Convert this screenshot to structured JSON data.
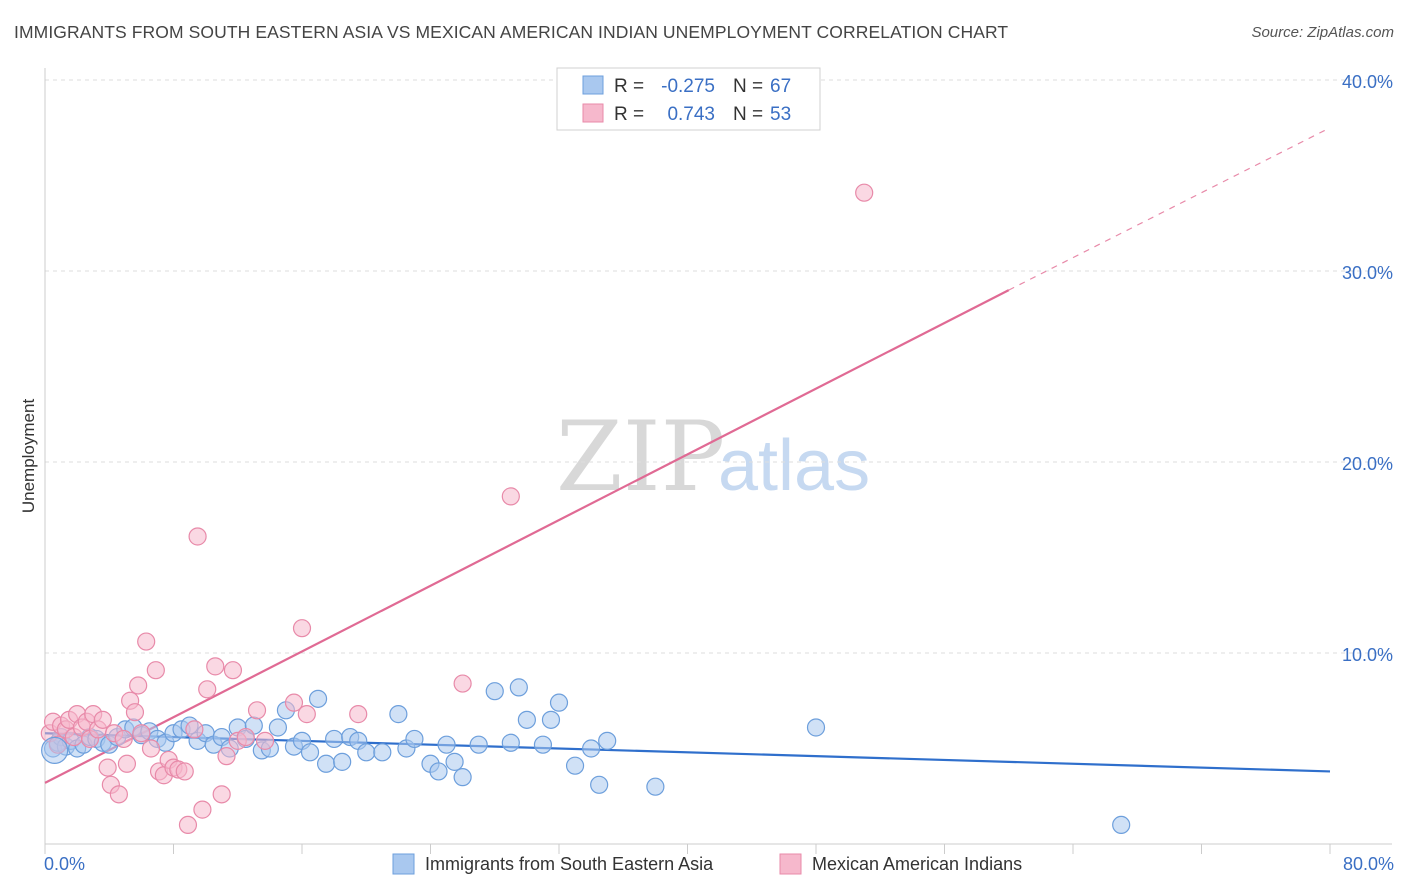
{
  "header": {
    "title": "IMMIGRANTS FROM SOUTH EASTERN ASIA VS MEXICAN AMERICAN INDIAN UNEMPLOYMENT CORRELATION CHART",
    "source": "Source: ZipAtlas.com"
  },
  "watermark": {
    "zip": "ZIP",
    "atlas": "atlas"
  },
  "legend": {
    "rows": [
      {
        "r_label": "R =",
        "r_value": "-0.275",
        "n_label": "N =",
        "n_value": "67"
      },
      {
        "r_label": "R =",
        "r_value": "0.743",
        "n_label": "N =",
        "n_value": "53"
      }
    ]
  },
  "chart_data": {
    "type": "scatter",
    "ylabel": "Unemployment",
    "xlim": [
      0,
      80
    ],
    "ylim": [
      0,
      40
    ],
    "x_tick_labels": [
      "0.0%",
      "80.0%"
    ],
    "y_ticks": [
      10,
      20,
      30,
      40
    ],
    "y_tick_labels": [
      "10.0%",
      "20.0%",
      "30.0%",
      "40.0%"
    ],
    "grid": true,
    "legend_position": "top-center",
    "colors": {
      "blue_fill": "#a9c8ef",
      "blue_stroke": "#6d9fdc",
      "blue_line": "#2f6fcc",
      "pink_fill": "#f6b8cc",
      "pink_stroke": "#e88aa9",
      "pink_line": "#e06a94"
    },
    "series": [
      {
        "name": "Immigrants from South Eastern Asia",
        "color": "#a9c8ef",
        "trend": {
          "x": [
            0,
            80
          ],
          "y": [
            5.8,
            3.8
          ]
        },
        "points": [
          [
            0.5,
            5.0
          ],
          [
            0.8,
            5.3
          ],
          [
            1.0,
            5.6
          ],
          [
            1.3,
            5.1
          ],
          [
            1.6,
            5.4
          ],
          [
            2.0,
            5.0
          ],
          [
            2.4,
            5.2
          ],
          [
            2.8,
            5.6
          ],
          [
            3.2,
            5.5
          ],
          [
            3.6,
            5.3
          ],
          [
            4.0,
            5.2
          ],
          [
            4.5,
            5.6
          ],
          [
            5.0,
            6.0
          ],
          [
            5.5,
            6.1
          ],
          [
            6.0,
            5.7
          ],
          [
            6.5,
            5.9
          ],
          [
            7.0,
            5.5
          ],
          [
            7.5,
            5.3
          ],
          [
            8.0,
            5.8
          ],
          [
            8.5,
            6.0
          ],
          [
            9.0,
            6.2
          ],
          [
            9.5,
            5.4
          ],
          [
            10.0,
            5.8
          ],
          [
            10.5,
            5.2
          ],
          [
            11.0,
            5.6
          ],
          [
            11.5,
            5.0
          ],
          [
            12.0,
            6.1
          ],
          [
            12.5,
            5.5
          ],
          [
            13.0,
            6.2
          ],
          [
            13.5,
            4.9
          ],
          [
            14.0,
            5.0
          ],
          [
            14.5,
            6.1
          ],
          [
            15.0,
            7.0
          ],
          [
            15.5,
            5.1
          ],
          [
            16.0,
            5.4
          ],
          [
            16.5,
            4.8
          ],
          [
            17.0,
            7.6
          ],
          [
            17.5,
            4.2
          ],
          [
            18.0,
            5.5
          ],
          [
            18.5,
            4.3
          ],
          [
            19.0,
            5.6
          ],
          [
            19.5,
            5.4
          ],
          [
            20.0,
            4.8
          ],
          [
            21.0,
            4.8
          ],
          [
            22.0,
            6.8
          ],
          [
            22.5,
            5.0
          ],
          [
            23.0,
            5.5
          ],
          [
            24.0,
            4.2
          ],
          [
            24.5,
            3.8
          ],
          [
            25.0,
            5.2
          ],
          [
            25.5,
            4.3
          ],
          [
            26.0,
            3.5
          ],
          [
            27.0,
            5.2
          ],
          [
            28.0,
            8.0
          ],
          [
            29.0,
            5.3
          ],
          [
            29.5,
            8.2
          ],
          [
            30.0,
            6.5
          ],
          [
            31.0,
            5.2
          ],
          [
            31.5,
            6.5
          ],
          [
            32.0,
            7.4
          ],
          [
            33.0,
            4.1
          ],
          [
            34.0,
            5.0
          ],
          [
            34.5,
            3.1
          ],
          [
            35.0,
            5.4
          ],
          [
            38.0,
            3.0
          ],
          [
            48.0,
            6.1
          ],
          [
            67.0,
            1.0
          ]
        ]
      },
      {
        "name": "Mexican American Indians",
        "color": "#f6b8cc",
        "trend": {
          "x": [
            0,
            60
          ],
          "y": [
            3.2,
            29.0
          ],
          "dashed_to": {
            "x": 80,
            "y": 37.5
          }
        },
        "points": [
          [
            0.3,
            5.8
          ],
          [
            0.5,
            6.4
          ],
          [
            0.8,
            5.2
          ],
          [
            1.0,
            6.2
          ],
          [
            1.3,
            6.0
          ],
          [
            1.5,
            6.5
          ],
          [
            1.8,
            5.6
          ],
          [
            2.0,
            6.8
          ],
          [
            2.3,
            6.1
          ],
          [
            2.6,
            6.4
          ],
          [
            2.8,
            5.5
          ],
          [
            3.0,
            6.8
          ],
          [
            3.3,
            6.0
          ],
          [
            3.6,
            6.5
          ],
          [
            3.9,
            4.0
          ],
          [
            4.1,
            3.1
          ],
          [
            4.3,
            5.8
          ],
          [
            4.6,
            2.6
          ],
          [
            4.9,
            5.5
          ],
          [
            5.1,
            4.2
          ],
          [
            5.3,
            7.5
          ],
          [
            5.6,
            6.9
          ],
          [
            5.8,
            8.3
          ],
          [
            6.0,
            5.8
          ],
          [
            6.3,
            10.6
          ],
          [
            6.6,
            5.0
          ],
          [
            6.9,
            9.1
          ],
          [
            7.1,
            3.8
          ],
          [
            7.4,
            3.6
          ],
          [
            7.7,
            4.4
          ],
          [
            8.0,
            4.0
          ],
          [
            8.3,
            3.9
          ],
          [
            8.7,
            3.8
          ],
          [
            8.9,
            1.0
          ],
          [
            9.3,
            6.0
          ],
          [
            9.5,
            16.1
          ],
          [
            9.8,
            1.8
          ],
          [
            10.1,
            8.1
          ],
          [
            10.6,
            9.3
          ],
          [
            11.0,
            2.6
          ],
          [
            11.3,
            4.6
          ],
          [
            11.7,
            9.1
          ],
          [
            12.0,
            5.4
          ],
          [
            12.5,
            5.6
          ],
          [
            13.2,
            7.0
          ],
          [
            13.7,
            5.4
          ],
          [
            15.5,
            7.4
          ],
          [
            16.0,
            11.3
          ],
          [
            16.3,
            6.8
          ],
          [
            19.5,
            6.8
          ],
          [
            26.0,
            8.4
          ],
          [
            29.0,
            18.2
          ],
          [
            51.0,
            34.1
          ]
        ]
      }
    ]
  },
  "bottom_legend": {
    "items": [
      {
        "label": "Immigrants from South Eastern Asia"
      },
      {
        "label": "Mexican American Indians"
      }
    ]
  }
}
